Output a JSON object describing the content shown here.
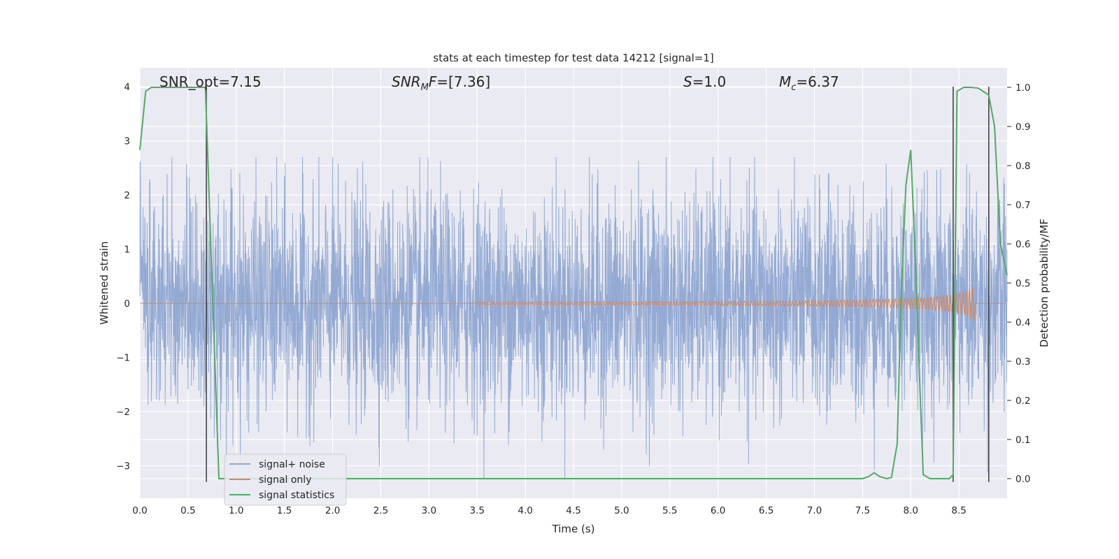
{
  "chart_data": {
    "type": "line",
    "title": "stats at each timestep for test data 14212 [signal=1]",
    "xlabel": "Time (s)",
    "ylabel": "Whitened strain",
    "ylabel_right": "Detection probability/MF",
    "xlim": [
      0.0,
      9.0
    ],
    "ylim": [
      -3.6,
      4.35
    ],
    "ylim_right": [
      -0.05,
      1.05
    ],
    "x_ticks": [
      "0.0",
      "0.5",
      "1.0",
      "1.5",
      "2.0",
      "2.5",
      "3.0",
      "3.5",
      "4.0",
      "4.5",
      "5.0",
      "5.5",
      "6.0",
      "6.5",
      "7.0",
      "7.5",
      "8.0",
      "8.5"
    ],
    "y_ticks": [
      "4",
      "3",
      "2",
      "1",
      "0",
      "−1",
      "−2",
      "−3"
    ],
    "y_right_ticks": [
      "1.0",
      "0.9",
      "0.8",
      "0.7",
      "0.6",
      "0.5",
      "0.4",
      "0.3",
      "0.2",
      "0.1",
      "0.0"
    ],
    "annotations": {
      "snr_opt": "SNR_opt=7.15",
      "snr_mf": "=[7.36]",
      "s": "=1.0",
      "mc": "=6.37"
    },
    "legend": {
      "position": "lower left",
      "entries": [
        "signal+ noise",
        "signal only",
        "signal statistics"
      ]
    },
    "colors": {
      "signal_noise": "#8fa7d1",
      "signal_only": "#dd8452",
      "signal_statistics": "#55a868",
      "background": "#eaeaf2"
    },
    "vertical_lines_x": [
      0.69,
      8.44,
      8.81
    ],
    "series": [
      {
        "name": "signal statistics",
        "axis": "right",
        "x": [
          0.0,
          0.06,
          0.12,
          0.3,
          0.5,
          0.68,
          0.75,
          0.82,
          1.0,
          2.0,
          3.0,
          4.0,
          5.0,
          6.0,
          7.0,
          7.5,
          7.56,
          7.62,
          7.68,
          7.75,
          7.8,
          7.86,
          7.9,
          7.95,
          8.0,
          8.05,
          8.1,
          8.13,
          8.2,
          8.3,
          8.4,
          8.44,
          8.48,
          8.55,
          8.62,
          8.7,
          8.75,
          8.81,
          8.87,
          8.93,
          9.0
        ],
        "values": [
          0.84,
          0.99,
          1.0,
          1.0,
          1.0,
          1.0,
          0.5,
          0.0,
          0.0,
          0.0,
          0.0,
          0.0,
          0.0,
          0.0,
          0.0,
          0.0,
          0.005,
          0.015,
          0.005,
          0.0,
          0.003,
          0.09,
          0.46,
          0.75,
          0.84,
          0.55,
          0.2,
          0.01,
          0.0,
          0.0,
          0.0,
          0.01,
          0.99,
          1.0,
          1.0,
          0.998,
          0.99,
          0.98,
          0.9,
          0.6,
          0.52
        ]
      }
    ]
  }
}
